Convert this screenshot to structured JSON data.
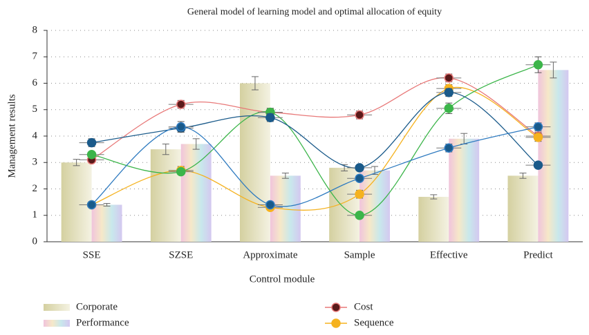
{
  "chart_data": {
    "type": "bar-line",
    "title": "General model of learning model and optimal allocation of equity",
    "x_label": "Control module",
    "y_label": "Management results",
    "categories": [
      "SSE",
      "SZSE",
      "Approximate",
      "Sample",
      "Effective",
      "Predict"
    ],
    "ylim": [
      0,
      8
    ],
    "yticks": [
      0,
      1,
      2,
      3,
      4,
      5,
      6,
      7,
      8
    ],
    "grid": true,
    "series": [
      {
        "name": "Corporate",
        "kind": "bar",
        "color": "#d4d0a0",
        "values": [
          3.0,
          3.5,
          6.0,
          2.8,
          1.7,
          2.5
        ],
        "errors": [
          0.12,
          0.2,
          0.25,
          0.12,
          0.08,
          0.1
        ]
      },
      {
        "name": "Performance",
        "kind": "bar",
        "color": "#f0c4dc",
        "gradient": [
          "#f0c4dc",
          "#f6e8c8",
          "#c8e8ec",
          "#d4c8f0"
        ],
        "values": [
          1.4,
          3.7,
          2.5,
          2.7,
          3.9,
          6.5
        ],
        "errors": [
          0.05,
          0.2,
          0.1,
          0.15,
          0.2,
          0.3
        ]
      },
      {
        "name": "Cost",
        "kind": "line",
        "color": "#e87878",
        "marker": "#5a1a1a",
        "values": [
          3.1,
          5.2,
          4.9,
          4.8,
          6.2,
          4.0
        ],
        "errors": [
          0.1,
          0.15,
          0.15,
          0.15,
          0.15,
          0.15
        ]
      },
      {
        "name": "Sequence",
        "kind": "line",
        "color": "#f5b21f",
        "marker": "#f5b21f",
        "values": [
          1.4,
          2.7,
          1.3,
          1.8,
          5.8,
          3.95
        ],
        "errors": [
          0.1,
          0.15,
          0.1,
          0.15,
          0.15,
          0.15
        ]
      },
      {
        "kind": "line",
        "color": "#3cb54a",
        "marker": "#3cb54a",
        "values": [
          3.3,
          2.65,
          4.9,
          1.0,
          5.05,
          6.7
        ],
        "errors": [
          0.1,
          0.1,
          0.15,
          0.1,
          0.2,
          0.3
        ]
      },
      {
        "kind": "line",
        "color": "#1a5a8a",
        "marker": "#1a5a8a",
        "values": [
          3.75,
          4.3,
          4.7,
          2.8,
          5.65,
          2.9
        ],
        "errors": [
          0.15,
          0.15,
          0.15,
          0.1,
          0.15,
          0.1
        ]
      },
      {
        "kind": "line",
        "color": "#2f7bc0",
        "marker": "#1a5a8a",
        "values": [
          1.4,
          4.35,
          1.4,
          2.4,
          3.55,
          4.35
        ],
        "errors": [
          0.1,
          0.2,
          0.1,
          0.1,
          0.15,
          0.15
        ]
      }
    ]
  }
}
